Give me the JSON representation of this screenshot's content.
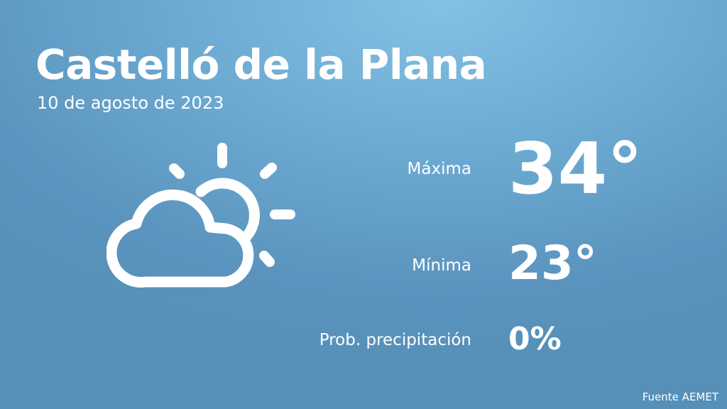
{
  "location": "Castelló de la Plana",
  "date": "10 de agosto de 2023",
  "weather_icon": "partly-cloudy-icon",
  "max": {
    "label": "Máxima",
    "value": "34°"
  },
  "min": {
    "label": "Mínima",
    "value": "23°"
  },
  "precip": {
    "label": "Prob. precipitación",
    "value": "0%"
  },
  "source": "Fuente AEMET"
}
